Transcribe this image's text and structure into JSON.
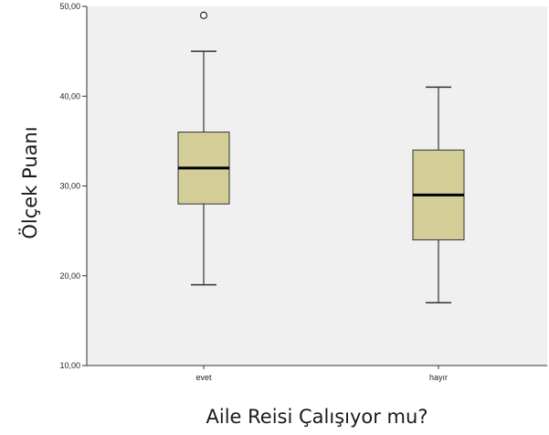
{
  "chart_data": {
    "type": "boxplot",
    "title": "",
    "xlabel": "Aile Reisi Çalışıyor mu?",
    "ylabel": "Ölçek Puanı",
    "ylim": [
      10,
      50
    ],
    "yticks": [
      "10,00",
      "20,00",
      "30,00",
      "40,00",
      "50,00"
    ],
    "ytick_values": [
      10,
      20,
      30,
      40,
      50
    ],
    "categories": [
      "evet",
      "hayır"
    ],
    "boxes": [
      {
        "category": "evet",
        "whisker_low": 19,
        "q1": 28,
        "median": 32,
        "q3": 36,
        "whisker_high": 45,
        "outliers": [
          49
        ]
      },
      {
        "category": "hayır",
        "whisker_low": 17,
        "q1": 24,
        "median": 29,
        "q3": 34,
        "whisker_high": 41,
        "outliers": []
      }
    ],
    "grid": false,
    "colors": {
      "plot_background": "#f0f0f0",
      "box_fill": "#d3ce97",
      "box_stroke": "#333333",
      "median": "#000000"
    }
  }
}
